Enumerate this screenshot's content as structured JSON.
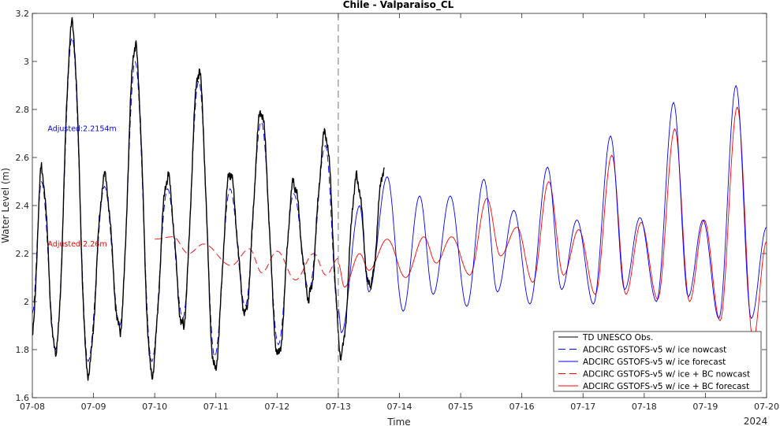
{
  "chart_data": {
    "type": "line",
    "title": "Chile - Valparaiso_CL",
    "xlabel": "Time",
    "ylabel": "Water Level (m)",
    "year_label": "2024",
    "x_tick_labels": [
      "07-08",
      "07-09",
      "07-10",
      "07-11",
      "07-12",
      "07-13",
      "07-14",
      "07-15",
      "07-16",
      "07-17",
      "07-18",
      "07-19",
      "07-20"
    ],
    "xlim_days": [
      "07-08",
      "07-20"
    ],
    "ylim": [
      1.6,
      3.2
    ],
    "y_tick_values": [
      1.6,
      1.8,
      2.0,
      2.2,
      2.4,
      2.6,
      2.8,
      3.0,
      3.2
    ],
    "y_tick_labels": [
      "1.6",
      "1.8",
      "2",
      "2.2",
      "2.4",
      "2.6",
      "2.8",
      "3",
      "3.2"
    ],
    "nowcast_forecast_boundary": "07-13",
    "grid": false,
    "legend_position": "bottom-right",
    "annotations": [
      {
        "text": "Adjusted:2.2154m",
        "color": "#0000ff",
        "at_day": 8.25,
        "at_y": 2.72
      },
      {
        "text": "Adjusted:2.26m",
        "color": "#ff0000",
        "at_day": 8.25,
        "at_y": 2.24
      }
    ],
    "series": [
      {
        "name": "TD UNESCO Obs.",
        "color": "#000000",
        "style": "solid",
        "x_range": [
          "07-08",
          "07-13 18:00"
        ],
        "extrema": [
          {
            "t": 8.0,
            "y": 1.86
          },
          {
            "t": 8.15,
            "y": 2.55
          },
          {
            "t": 8.38,
            "y": 1.78
          },
          {
            "t": 8.65,
            "y": 3.15
          },
          {
            "t": 8.91,
            "y": 1.7
          },
          {
            "t": 9.18,
            "y": 2.52
          },
          {
            "t": 9.43,
            "y": 1.88
          },
          {
            "t": 9.68,
            "y": 3.07
          },
          {
            "t": 9.95,
            "y": 1.7
          },
          {
            "t": 10.21,
            "y": 2.52
          },
          {
            "t": 10.46,
            "y": 1.9
          },
          {
            "t": 10.72,
            "y": 2.96
          },
          {
            "t": 10.98,
            "y": 1.72
          },
          {
            "t": 11.23,
            "y": 2.53
          },
          {
            "t": 11.48,
            "y": 1.96
          },
          {
            "t": 11.74,
            "y": 2.79
          },
          {
            "t": 12.02,
            "y": 1.77
          },
          {
            "t": 12.27,
            "y": 2.49
          },
          {
            "t": 12.52,
            "y": 2.02
          },
          {
            "t": 12.79,
            "y": 2.7
          },
          {
            "t": 13.05,
            "y": 1.78
          },
          {
            "t": 13.3,
            "y": 2.52
          },
          {
            "t": 13.52,
            "y": 2.05
          },
          {
            "t": 13.75,
            "y": 2.56
          }
        ]
      },
      {
        "name": "ADCIRC GSTOFS-v5 w/ ice nowcast",
        "color": "#0000ff",
        "style": "dashed",
        "x_range": [
          "07-08",
          "07-13"
        ],
        "extrema": [
          {
            "t": 8.0,
            "y": 1.95
          },
          {
            "t": 8.15,
            "y": 2.5
          },
          {
            "t": 8.38,
            "y": 1.8
          },
          {
            "t": 8.65,
            "y": 3.1
          },
          {
            "t": 8.91,
            "y": 1.75
          },
          {
            "t": 9.18,
            "y": 2.48
          },
          {
            "t": 9.43,
            "y": 1.9
          },
          {
            "t": 9.68,
            "y": 3.0
          },
          {
            "t": 9.95,
            "y": 1.75
          },
          {
            "t": 10.21,
            "y": 2.47
          },
          {
            "t": 10.46,
            "y": 1.93
          },
          {
            "t": 10.72,
            "y": 2.92
          },
          {
            "t": 10.98,
            "y": 1.77
          },
          {
            "t": 11.23,
            "y": 2.47
          },
          {
            "t": 11.48,
            "y": 1.98
          },
          {
            "t": 11.74,
            "y": 2.75
          },
          {
            "t": 12.02,
            "y": 1.82
          },
          {
            "t": 12.27,
            "y": 2.45
          },
          {
            "t": 12.52,
            "y": 2.05
          },
          {
            "t": 12.79,
            "y": 2.65
          },
          {
            "t": 13.0,
            "y": 1.95
          }
        ]
      },
      {
        "name": "ADCIRC GSTOFS-v5 w/ ice forecast",
        "color": "#0000ff",
        "style": "solid",
        "x_range": [
          "07-13",
          "07-20"
        ],
        "extrema": [
          {
            "t": 13.0,
            "y": 1.97
          },
          {
            "t": 13.05,
            "y": 1.87
          },
          {
            "t": 13.35,
            "y": 2.4
          },
          {
            "t": 13.5,
            "y": 2.04
          },
          {
            "t": 13.8,
            "y": 2.52
          },
          {
            "t": 14.06,
            "y": 1.96
          },
          {
            "t": 14.33,
            "y": 2.44
          },
          {
            "t": 14.55,
            "y": 2.03
          },
          {
            "t": 14.83,
            "y": 2.44
          },
          {
            "t": 15.1,
            "y": 1.98
          },
          {
            "t": 15.38,
            "y": 2.51
          },
          {
            "t": 15.6,
            "y": 2.04
          },
          {
            "t": 15.87,
            "y": 2.38
          },
          {
            "t": 16.13,
            "y": 1.99
          },
          {
            "t": 16.42,
            "y": 2.56
          },
          {
            "t": 16.65,
            "y": 2.05
          },
          {
            "t": 16.9,
            "y": 2.34
          },
          {
            "t": 17.17,
            "y": 1.99
          },
          {
            "t": 17.45,
            "y": 2.69
          },
          {
            "t": 17.68,
            "y": 2.05
          },
          {
            "t": 17.93,
            "y": 2.35
          },
          {
            "t": 18.2,
            "y": 2.0
          },
          {
            "t": 18.48,
            "y": 2.83
          },
          {
            "t": 18.72,
            "y": 2.02
          },
          {
            "t": 18.96,
            "y": 2.34
          },
          {
            "t": 19.22,
            "y": 1.93
          },
          {
            "t": 19.5,
            "y": 2.9
          },
          {
            "t": 19.75,
            "y": 1.93
          },
          {
            "t": 20.0,
            "y": 2.31
          }
        ]
      },
      {
        "name": "ADCIRC GSTOFS-v5 w/ ice + BC nowcast",
        "color": "#ff0000",
        "style": "dashed",
        "x_range": [
          "07-10",
          "07-13"
        ],
        "extrema": [
          {
            "t": 10.0,
            "y": 2.26
          },
          {
            "t": 10.3,
            "y": 2.27
          },
          {
            "t": 10.55,
            "y": 2.2
          },
          {
            "t": 10.8,
            "y": 2.24
          },
          {
            "t": 11.25,
            "y": 2.15
          },
          {
            "t": 11.55,
            "y": 2.22
          },
          {
            "t": 11.75,
            "y": 2.12
          },
          {
            "t": 12.0,
            "y": 2.21
          },
          {
            "t": 12.3,
            "y": 2.09
          },
          {
            "t": 12.6,
            "y": 2.2
          },
          {
            "t": 12.8,
            "y": 2.11
          },
          {
            "t": 13.0,
            "y": 2.18
          }
        ]
      },
      {
        "name": "ADCIRC GSTOFS-v5 w/ ice + BC forecast",
        "color": "#ff0000",
        "style": "solid",
        "x_range": [
          "07-13",
          "07-20"
        ],
        "extrema": [
          {
            "t": 13.0,
            "y": 2.16
          },
          {
            "t": 13.1,
            "y": 2.06
          },
          {
            "t": 13.35,
            "y": 2.2
          },
          {
            "t": 13.5,
            "y": 2.13
          },
          {
            "t": 13.8,
            "y": 2.26
          },
          {
            "t": 14.1,
            "y": 2.1
          },
          {
            "t": 14.4,
            "y": 2.27
          },
          {
            "t": 14.6,
            "y": 2.16
          },
          {
            "t": 14.85,
            "y": 2.27
          },
          {
            "t": 15.15,
            "y": 2.11
          },
          {
            "t": 15.43,
            "y": 2.43
          },
          {
            "t": 15.65,
            "y": 2.19
          },
          {
            "t": 15.92,
            "y": 2.31
          },
          {
            "t": 16.18,
            "y": 2.08
          },
          {
            "t": 16.44,
            "y": 2.5
          },
          {
            "t": 16.68,
            "y": 2.11
          },
          {
            "t": 16.93,
            "y": 2.3
          },
          {
            "t": 17.2,
            "y": 2.03
          },
          {
            "t": 17.47,
            "y": 2.61
          },
          {
            "t": 17.7,
            "y": 2.03
          },
          {
            "t": 17.95,
            "y": 2.33
          },
          {
            "t": 18.22,
            "y": 2.01
          },
          {
            "t": 18.5,
            "y": 2.72
          },
          {
            "t": 18.74,
            "y": 2.0
          },
          {
            "t": 18.98,
            "y": 2.34
          },
          {
            "t": 19.24,
            "y": 1.92
          },
          {
            "t": 19.52,
            "y": 2.81
          },
          {
            "t": 19.78,
            "y": 1.84
          },
          {
            "t": 20.0,
            "y": 2.25
          }
        ]
      }
    ]
  }
}
